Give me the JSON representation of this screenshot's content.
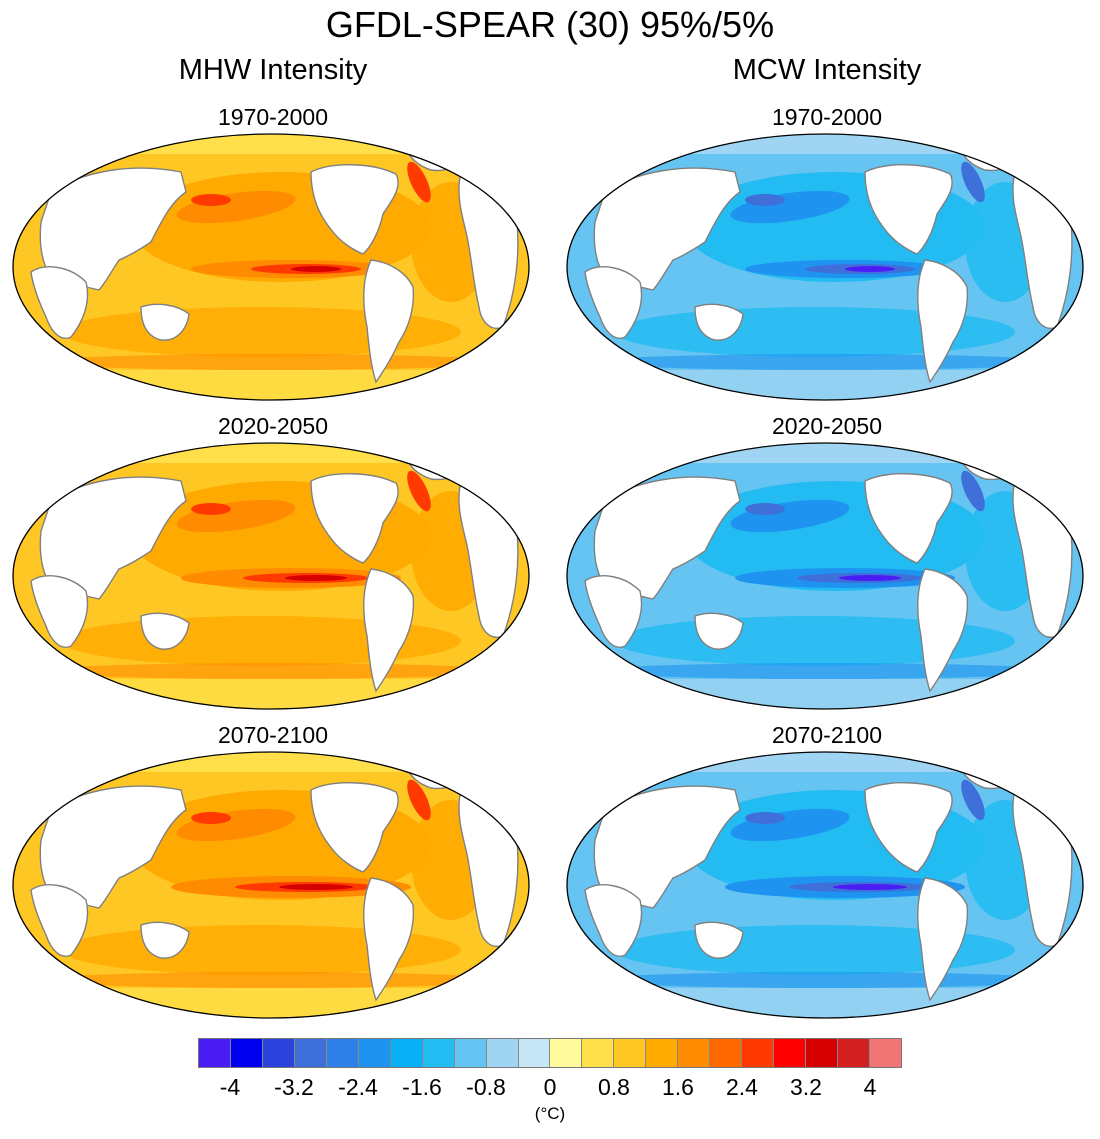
{
  "title": "GFDL-SPEAR (30) 95%/5%",
  "columns": [
    {
      "title": "MHW Intensity",
      "panels": [
        "1970-2000",
        "2020-2050",
        "2070-2100"
      ]
    },
    {
      "title": "MCW Intensity",
      "panels": [
        "1970-2000",
        "2020-2050",
        "2070-2100"
      ]
    }
  ],
  "colorbar": {
    "unit": "(°C)",
    "tick_labels": [
      "-4",
      "-3.2",
      "-2.4",
      "-1.6",
      "-0.8",
      "0",
      "0.8",
      "1.6",
      "2.4",
      "3.2",
      "4"
    ],
    "colors": [
      "#4b1df5",
      "#0000f0",
      "#2b42dd",
      "#3f6fd9",
      "#2d80e8",
      "#1e93f0",
      "#08b1f5",
      "#23bcf2",
      "#65c4f1",
      "#9fd4f2",
      "#c6e6f6",
      "#fffa9c",
      "#ffe04a",
      "#ffc724",
      "#ffaa00",
      "#ff8c00",
      "#ff6a00",
      "#ff3a00",
      "#ff0000",
      "#d70000",
      "#d21f1f",
      "#f07575"
    ]
  }
}
